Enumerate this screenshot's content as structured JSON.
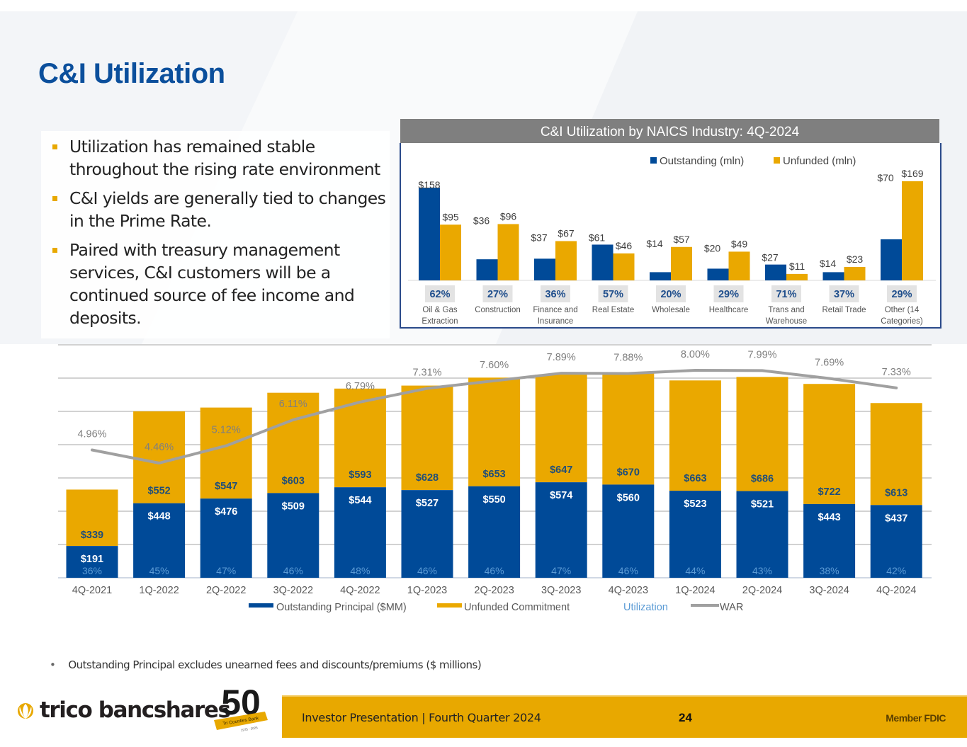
{
  "page": {
    "title": "C&I Utilization",
    "bullets": [
      "Utilization has remained stable throughout the rising rate environment",
      "C&I yields are generally tied to changes in the Prime Rate.",
      "Paired with treasury management services, C&I customers will be a continued source of fee income and deposits."
    ],
    "footnote": "Outstanding Principal excludes unearned fees and discounts/premiums ($ millions)",
    "footer": {
      "company": "trico bancshares",
      "badge_number": "50",
      "badge_ribbon": "Tri Counties Bank",
      "badge_years": "1975 - 2025",
      "presentation": "Investor Presentation  |  Fourth Quarter 2024",
      "page_number": "24",
      "member": "Member FDIC"
    },
    "colors": {
      "brand_blue": "#0b4f9c",
      "outstanding": "#004a98",
      "unfunded": "#eaa800",
      "war_line": "#a0a0a0",
      "utilization_text": "#5b9bd5",
      "footer_gold": "#e8a800"
    }
  },
  "chart_data": [
    {
      "type": "bar",
      "title": "C&I Utilization by NAICS Industry: 4Q-2024",
      "categories": [
        "Oil & Gas Extraction",
        "Construction",
        "Finance and Insurance",
        "Real Estate",
        "Wholesale",
        "Healthcare",
        "Trans and Warehouse",
        "Retail Trade",
        "Other (14 Categories)"
      ],
      "category_lines": [
        [
          "Oil & Gas",
          "Extraction"
        ],
        [
          "Construction"
        ],
        [
          "Finance and",
          "Insurance"
        ],
        [
          "Real Estate"
        ],
        [
          "Wholesale"
        ],
        [
          "Healthcare"
        ],
        [
          "Trans and",
          "Warehouse"
        ],
        [
          "Retail Trade"
        ],
        [
          "Other (14",
          "Categories)"
        ]
      ],
      "series": [
        {
          "name": "Outstanding (mln)",
          "values": [
            158,
            36,
            37,
            61,
            14,
            20,
            27,
            14,
            70
          ],
          "labels": [
            "$158",
            "$36",
            "$37",
            "$61",
            "$14",
            "$20",
            "$27",
            "$14",
            "$70"
          ]
        },
        {
          "name": "Unfunded (mln)",
          "values": [
            95,
            96,
            67,
            46,
            57,
            49,
            11,
            23,
            169
          ],
          "labels": [
            "$95",
            "$96",
            "$67",
            "$46",
            "$57",
            "$49",
            "$11",
            "$23",
            "$169"
          ]
        }
      ],
      "utilization": [
        "62%",
        "27%",
        "36%",
        "57%",
        "20%",
        "29%",
        "71%",
        "37%",
        "29%"
      ],
      "ylim": [
        0,
        175
      ],
      "legend": "top-right",
      "grid": false
    },
    {
      "type": "bar",
      "stacked": true,
      "title": "",
      "categories": [
        "4Q-2021",
        "1Q-2022",
        "2Q-2022",
        "3Q-2022",
        "4Q-2022",
        "1Q-2023",
        "2Q-2023",
        "3Q-2023",
        "4Q-2023",
        "1Q-2024",
        "2Q-2024",
        "3Q-2024",
        "4Q-2024"
      ],
      "series": [
        {
          "name": "Outstanding Principal ($MM)",
          "values": [
            191,
            448,
            476,
            509,
            544,
            527,
            550,
            574,
            560,
            523,
            521,
            443,
            437
          ],
          "labels": [
            "$191",
            "$448",
            "$476",
            "$509",
            "$544",
            "$527",
            "$550",
            "$574",
            "$560",
            "$523",
            "$521",
            "$443",
            "$437"
          ]
        },
        {
          "name": "Unfunded Commitment",
          "values": [
            339,
            552,
            547,
            603,
            593,
            628,
            653,
            647,
            670,
            663,
            686,
            722,
            613
          ],
          "labels": [
            "$339",
            "$552",
            "$547",
            "$603",
            "$593",
            "$628",
            "$653",
            "$647",
            "$670",
            "$663",
            "$686",
            "$722",
            "$613"
          ]
        }
      ],
      "utilization": {
        "name": "Utilization",
        "labels": [
          "36%",
          "45%",
          "47%",
          "46%",
          "48%",
          "46%",
          "46%",
          "47%",
          "46%",
          "44%",
          "43%",
          "38%",
          "42%"
        ]
      },
      "war": {
        "name": "WAR",
        "values": [
          4.96,
          4.46,
          5.12,
          6.11,
          6.79,
          7.31,
          7.6,
          7.89,
          7.88,
          8.0,
          7.99,
          7.69,
          7.33
        ],
        "labels": [
          "4.96%",
          "4.46%",
          "5.12%",
          "6.11%",
          "6.79%",
          "7.31%",
          "7.60%",
          "7.89%",
          "7.88%",
          "8.00%",
          "7.99%",
          "7.69%",
          "7.33%"
        ]
      },
      "ylim": [
        0,
        1400
      ],
      "y_gridlines": [
        0,
        200,
        400,
        600,
        800,
        1000,
        1200,
        1400
      ],
      "legend": "bottom",
      "legend_items": [
        "Outstanding Principal ($MM)",
        "Unfunded Commitment",
        "Utilization",
        "WAR"
      ],
      "grid": true
    }
  ]
}
